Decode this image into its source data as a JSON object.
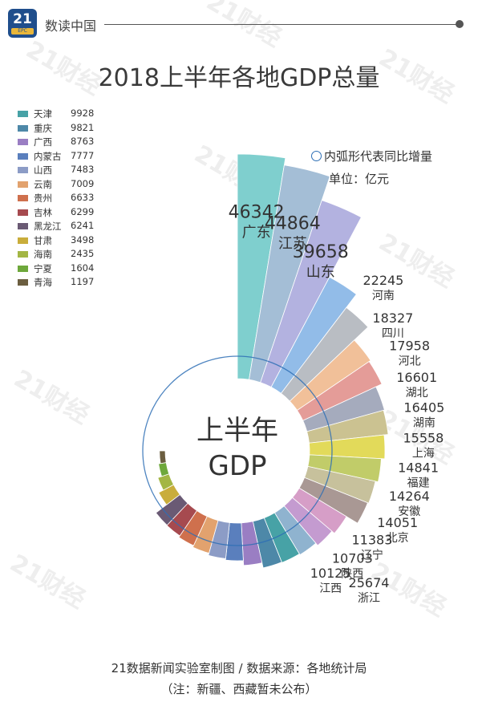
{
  "header": {
    "logo_number": "21",
    "logo_sub": "EPC",
    "brand": "数读中国"
  },
  "watermark_text": "21财经",
  "title": "2018上半年各地GDP总量",
  "note": "内弧形代表同比增量",
  "unit": "单位：亿元",
  "center": {
    "line1": "上半年",
    "line2": "GDP"
  },
  "footer": {
    "line1": "21数据新闻实验室制图 / 数据来源：各地统计局",
    "line2": "（注：新疆、西藏暂未公布）"
  },
  "colors": {
    "广东": "#7fcfce",
    "江苏": "#a4bed6",
    "山东": "#b3b2e0",
    "浙江": "#92bce8",
    "河南": "#b9bdc3",
    "四川": "#f1c099",
    "河北": "#e49c98",
    "湖北": "#a5abbd",
    "湖南": "#cbc291",
    "上海": "#e2da5a",
    "福建": "#c1cc69",
    "安徽": "#c7c19c",
    "北京": "#a99894",
    "辽宁": "#d69ec7",
    "陕西": "#c49bd0",
    "江西": "#8fb3cf",
    "天津": "#47a2a6",
    "重庆": "#4d88a8",
    "广西": "#9a7ec3",
    "内蒙古": "#5a7fbd",
    "山西": "#8c9cc6",
    "云南": "#e2a26e",
    "贵州": "#cf704d",
    "吉林": "#a64a4f",
    "黑龙江": "#6a5a74",
    "甘肃": "#c9ad3b",
    "海南": "#a3b644",
    "宁夏": "#6ea83b",
    "青海": "#6b5e40"
  },
  "chart_data": {
    "type": "radial-bar",
    "title": "2018上半年各地GDP总量",
    "unit": "亿元",
    "categories": [
      "广东",
      "江苏",
      "山东",
      "浙江",
      "河南",
      "四川",
      "河北",
      "湖北",
      "湖南",
      "上海",
      "福建",
      "安徽",
      "北京",
      "辽宁",
      "陕西",
      "江西",
      "天津",
      "重庆",
      "广西",
      "内蒙古",
      "山西",
      "云南",
      "贵州",
      "吉林",
      "黑龙江",
      "甘肃",
      "海南",
      "宁夏",
      "青海"
    ],
    "values": [
      46342,
      44864,
      39658,
      25674,
      22245,
      18327,
      17958,
      16601,
      16405,
      15558,
      14841,
      14264,
      14051,
      11383,
      10703,
      10125,
      9928,
      9821,
      8763,
      7777,
      7483,
      7009,
      6633,
      6299,
      6241,
      3498,
      2435,
      1604,
      1197
    ],
    "labels": [
      {
        "name": "广东",
        "value": "46342"
      },
      {
        "name": "江苏",
        "value": "44864"
      },
      {
        "name": "山东",
        "value": "39658"
      },
      {
        "name": "浙江",
        "value": "25674"
      },
      {
        "name": "河南",
        "value": "22245"
      },
      {
        "name": "四川",
        "value": "18327"
      },
      {
        "name": "河北",
        "value": "17958"
      },
      {
        "name": "湖北",
        "value": "16601"
      },
      {
        "name": "湖南",
        "value": "16405"
      },
      {
        "name": "上海",
        "value": "15558"
      },
      {
        "name": "福建",
        "value": "14841"
      },
      {
        "name": "安徽",
        "value": "14264"
      },
      {
        "name": "北京",
        "value": "14051"
      },
      {
        "name": "辽宁",
        "value": "11383"
      },
      {
        "name": "陕西",
        "value": "10703"
      },
      {
        "name": "江西",
        "value": "10125"
      }
    ],
    "legend": [
      {
        "name": "天津",
        "value": "9928"
      },
      {
        "name": "重庆",
        "value": "9821"
      },
      {
        "name": "广西",
        "value": "8763"
      },
      {
        "name": "内蒙古",
        "value": "7777"
      },
      {
        "name": "山西",
        "value": "7483"
      },
      {
        "name": "云南",
        "value": "7009"
      },
      {
        "name": "贵州",
        "value": "6633"
      },
      {
        "name": "吉林",
        "value": "6299"
      },
      {
        "name": "黑龙江",
        "value": "6241"
      },
      {
        "name": "甘肃",
        "value": "3498"
      },
      {
        "name": "海南",
        "value": "2435"
      },
      {
        "name": "宁夏",
        "value": "1604"
      },
      {
        "name": "青海",
        "value": "1197"
      }
    ]
  }
}
